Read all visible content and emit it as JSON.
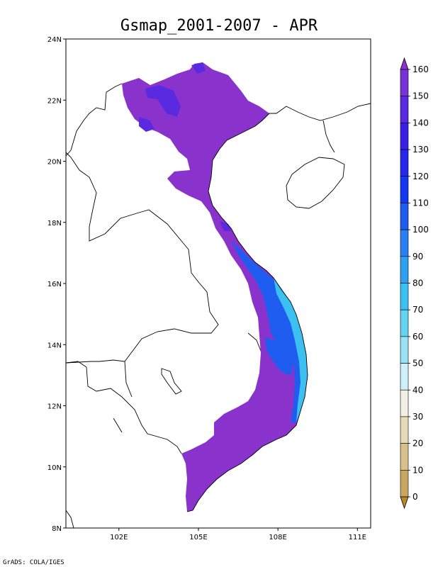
{
  "title": "Gsmap_2001-2007 - APR",
  "footer": "GrADS: COLA/IGES",
  "map": {
    "lat_range": [
      8,
      24
    ],
    "lon_range": [
      100,
      111.5
    ],
    "lat_ticks": [
      "24N",
      "22N",
      "20N",
      "18N",
      "16N",
      "14N",
      "12N",
      "10N",
      "8N"
    ],
    "lon_ticks": [
      "102E",
      "105E",
      "108E",
      "111E"
    ]
  },
  "colorbar": {
    "labels": [
      "160",
      "150",
      "140",
      "130",
      "120",
      "110",
      "100",
      "90",
      "80",
      "70",
      "60",
      "50",
      "40",
      "30",
      "20",
      "10",
      "0"
    ],
    "colors": [
      "#8a33cc",
      "#7733d6",
      "#5a2ae0",
      "#3c1fe6",
      "#2626ec",
      "#1438f0",
      "#1f5cf0",
      "#2a80f2",
      "#2fa0f0",
      "#3cc0f2",
      "#66d2f2",
      "#99e2f5",
      "#cdf0fa",
      "#f2f0e4",
      "#e6d9b8",
      "#d7c08a",
      "#c8a560",
      "#b8892c"
    ]
  },
  "legend_colors": {
    "land_main": "#8a33cc",
    "high_rain": "#5a2ae0",
    "coastal_blue": "#1f5cf0",
    "coastal_cyan": "#3cc0f2"
  }
}
